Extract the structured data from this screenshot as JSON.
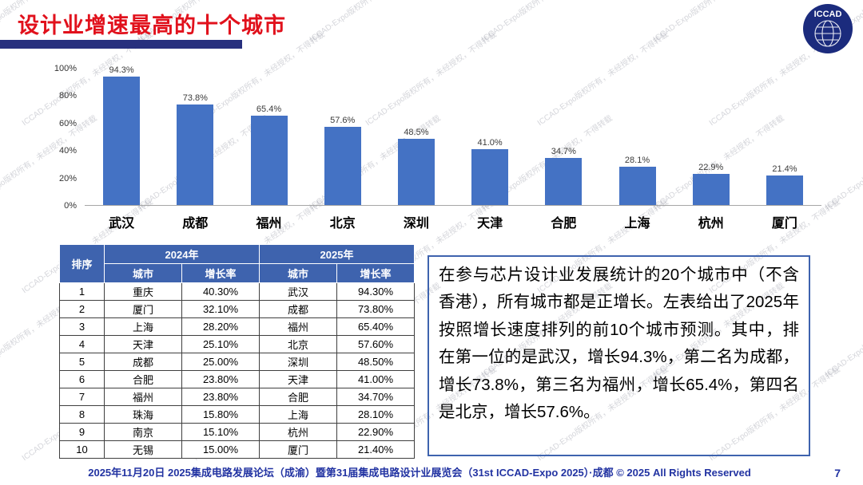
{
  "slide": {
    "title": "设计业增速最高的十个城市",
    "logo_text": "ICCAD",
    "watermark": "ICCAD-Expo版权所有，未经授权，不得转载",
    "footer": "2025年11月20日 2025集成电路发展论坛（成渝）暨第31届集成电路设计业展览会（31st ICCAD-Expo 2025）·成都 © 2025 All Rights Reserved",
    "page_number": "7"
  },
  "chart_data": {
    "type": "bar",
    "title": "",
    "categories": [
      "武汉",
      "成都",
      "福州",
      "北京",
      "深圳",
      "天津",
      "合肥",
      "上海",
      "杭州",
      "厦门"
    ],
    "values": [
      94.3,
      73.8,
      65.4,
      57.6,
      48.5,
      41.0,
      34.7,
      28.1,
      22.9,
      21.4
    ],
    "value_labels": [
      "94.3%",
      "73.8%",
      "65.4%",
      "57.6%",
      "48.5%",
      "41.0%",
      "34.7%",
      "28.1%",
      "22.9%",
      "21.4%"
    ],
    "xlabel": "",
    "ylabel": "",
    "ylim": [
      0,
      100
    ],
    "y_ticks": [
      "0%",
      "20%",
      "40%",
      "60%",
      "80%",
      "100%"
    ],
    "grid": false,
    "legend": "none",
    "bar_color": "#4472C4"
  },
  "table": {
    "header_rank": "排序",
    "header_2024": "2024年",
    "header_2025": "2025年",
    "subheader_city": "城市",
    "subheader_rate": "增长率",
    "rows": [
      {
        "rank": "1",
        "city_2024": "重庆",
        "rate_2024": "40.30%",
        "city_2025": "武汉",
        "rate_2025": "94.30%"
      },
      {
        "rank": "2",
        "city_2024": "厦门",
        "rate_2024": "32.10%",
        "city_2025": "成都",
        "rate_2025": "73.80%"
      },
      {
        "rank": "3",
        "city_2024": "上海",
        "rate_2024": "28.20%",
        "city_2025": "福州",
        "rate_2025": "65.40%"
      },
      {
        "rank": "4",
        "city_2024": "天津",
        "rate_2024": "25.10%",
        "city_2025": "北京",
        "rate_2025": "57.60%"
      },
      {
        "rank": "5",
        "city_2024": "成都",
        "rate_2024": "25.00%",
        "city_2025": "深圳",
        "rate_2025": "48.50%"
      },
      {
        "rank": "6",
        "city_2024": "合肥",
        "rate_2024": "23.80%",
        "city_2025": "天津",
        "rate_2025": "41.00%"
      },
      {
        "rank": "7",
        "city_2024": "福州",
        "rate_2024": "23.80%",
        "city_2025": "合肥",
        "rate_2025": "34.70%"
      },
      {
        "rank": "8",
        "city_2024": "珠海",
        "rate_2024": "15.80%",
        "city_2025": "上海",
        "rate_2025": "28.10%"
      },
      {
        "rank": "9",
        "city_2024": "南京",
        "rate_2024": "15.10%",
        "city_2025": "杭州",
        "rate_2025": "22.90%"
      },
      {
        "rank": "10",
        "city_2024": "无锡",
        "rate_2024": "15.00%",
        "city_2025": "厦门",
        "rate_2025": "21.40%"
      }
    ]
  },
  "commentary": {
    "text": "在参与芯片设计业发展统计的20个城市中（不含香港），所有城市都是正增长。左表给出了2025年按照增长速度排列的前10个城市预测。其中，排在第一位的是武汉，增长94.3%，第二名为成都，增长73.8%，第三名为福州，增长65.4%，第四名是北京，增长57.6%。"
  },
  "colors": {
    "title_red": "#E1111C",
    "title_underline_navy": "#27307E",
    "bar_blue": "#4472C4",
    "table_header_blue": "#3E63AE",
    "commentary_border_blue": "#3E63AE",
    "footer_blue": "#2233A2",
    "logo_navy": "#1B2B7D"
  }
}
